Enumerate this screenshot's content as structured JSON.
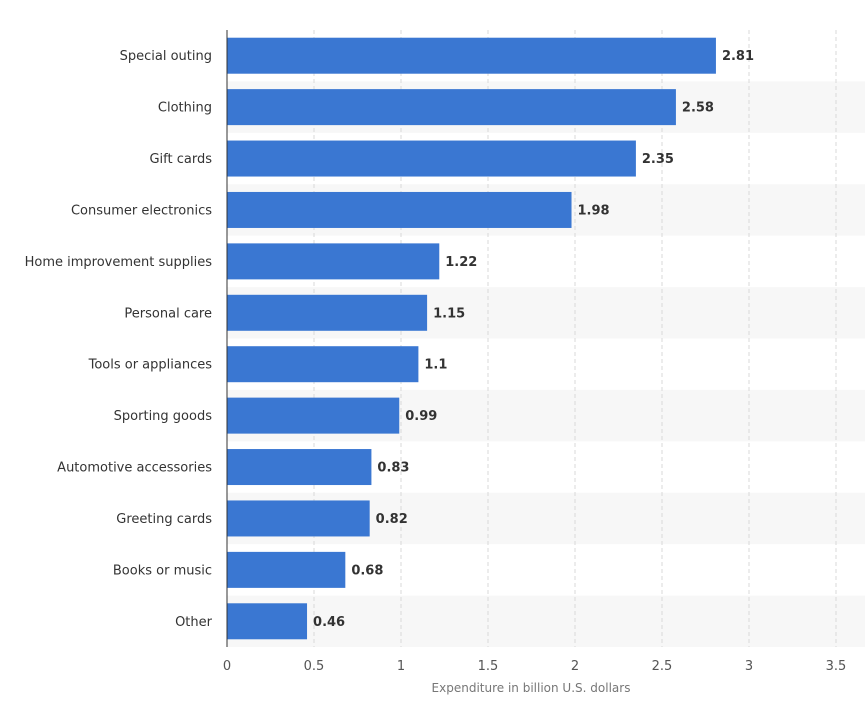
{
  "chart_data": {
    "type": "bar",
    "orientation": "horizontal",
    "categories": [
      "Special outing",
      "Clothing",
      "Gift cards",
      "Consumer electronics",
      "Home improvement supplies",
      "Personal care",
      "Tools or appliances",
      "Sporting goods",
      "Automotive accessories",
      "Greeting cards",
      "Books or music",
      "Other"
    ],
    "values": [
      2.81,
      2.58,
      2.35,
      1.98,
      1.22,
      1.15,
      1.1,
      0.99,
      0.83,
      0.82,
      0.68,
      0.46
    ],
    "value_labels": [
      "2.81",
      "2.58",
      "2.35",
      "1.98",
      "1.22",
      "1.15",
      "1.1",
      "0.99",
      "0.83",
      "0.82",
      "0.68",
      "0.46"
    ],
    "title": "",
    "xlabel": "Expenditure in billion U.S. dollars",
    "ylabel": "",
    "xlim": [
      0,
      3.5
    ],
    "xticks": [
      0,
      0.5,
      1,
      1.5,
      2,
      2.5,
      3,
      3.5
    ],
    "xtick_labels": [
      "0",
      "0.5",
      "1",
      "1.5",
      "2",
      "2.5",
      "3",
      "3.5"
    ],
    "grid": "vertical dashed",
    "legend": "none",
    "bar_color": "#3a77d2",
    "band_color": "#f7f7f7"
  }
}
